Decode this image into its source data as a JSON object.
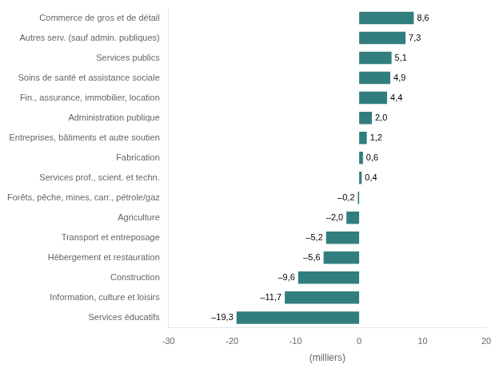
{
  "chart_data": {
    "type": "bar",
    "orientation": "horizontal",
    "categories": [
      "Services éducatifs",
      "Information, culture et loisirs",
      "Construction",
      "Hébergement et restauration",
      "Transport et entreposage",
      "Agriculture",
      "Forêts, pêche, mines, carr., pétrole/gaz",
      "Services prof., scient. et techn.",
      "Fabrication",
      "Entreprises, bâtiments et autre soutien",
      "Administration publique",
      "Fin., assurance, immobilier, location",
      "Soins de santé et assistance sociale",
      "Services publics",
      "Autres serv. (sauf admin. publiques)",
      "Commerce de gros et de détail"
    ],
    "values": [
      -19.3,
      -11.7,
      -9.6,
      -5.6,
      -5.2,
      -2.0,
      -0.2,
      0.4,
      0.6,
      1.2,
      2.0,
      4.4,
      4.9,
      5.1,
      7.3,
      8.6
    ],
    "value_labels": [
      "–19,3",
      "–11,7",
      "–9,6",
      "–5,6",
      "–5,2",
      "–2,0",
      "–0,2",
      "0,4",
      "0,6",
      "1,2",
      "2,0",
      "4,4",
      "4,9",
      "5,1",
      "7,3",
      "8,6"
    ],
    "data_labels": true,
    "color": "#317e7e",
    "xlabel": "(milliers)",
    "xlim": [
      -30,
      20
    ],
    "xticks": [
      -30,
      -20,
      -10,
      0,
      10,
      20
    ],
    "grid": false
  }
}
